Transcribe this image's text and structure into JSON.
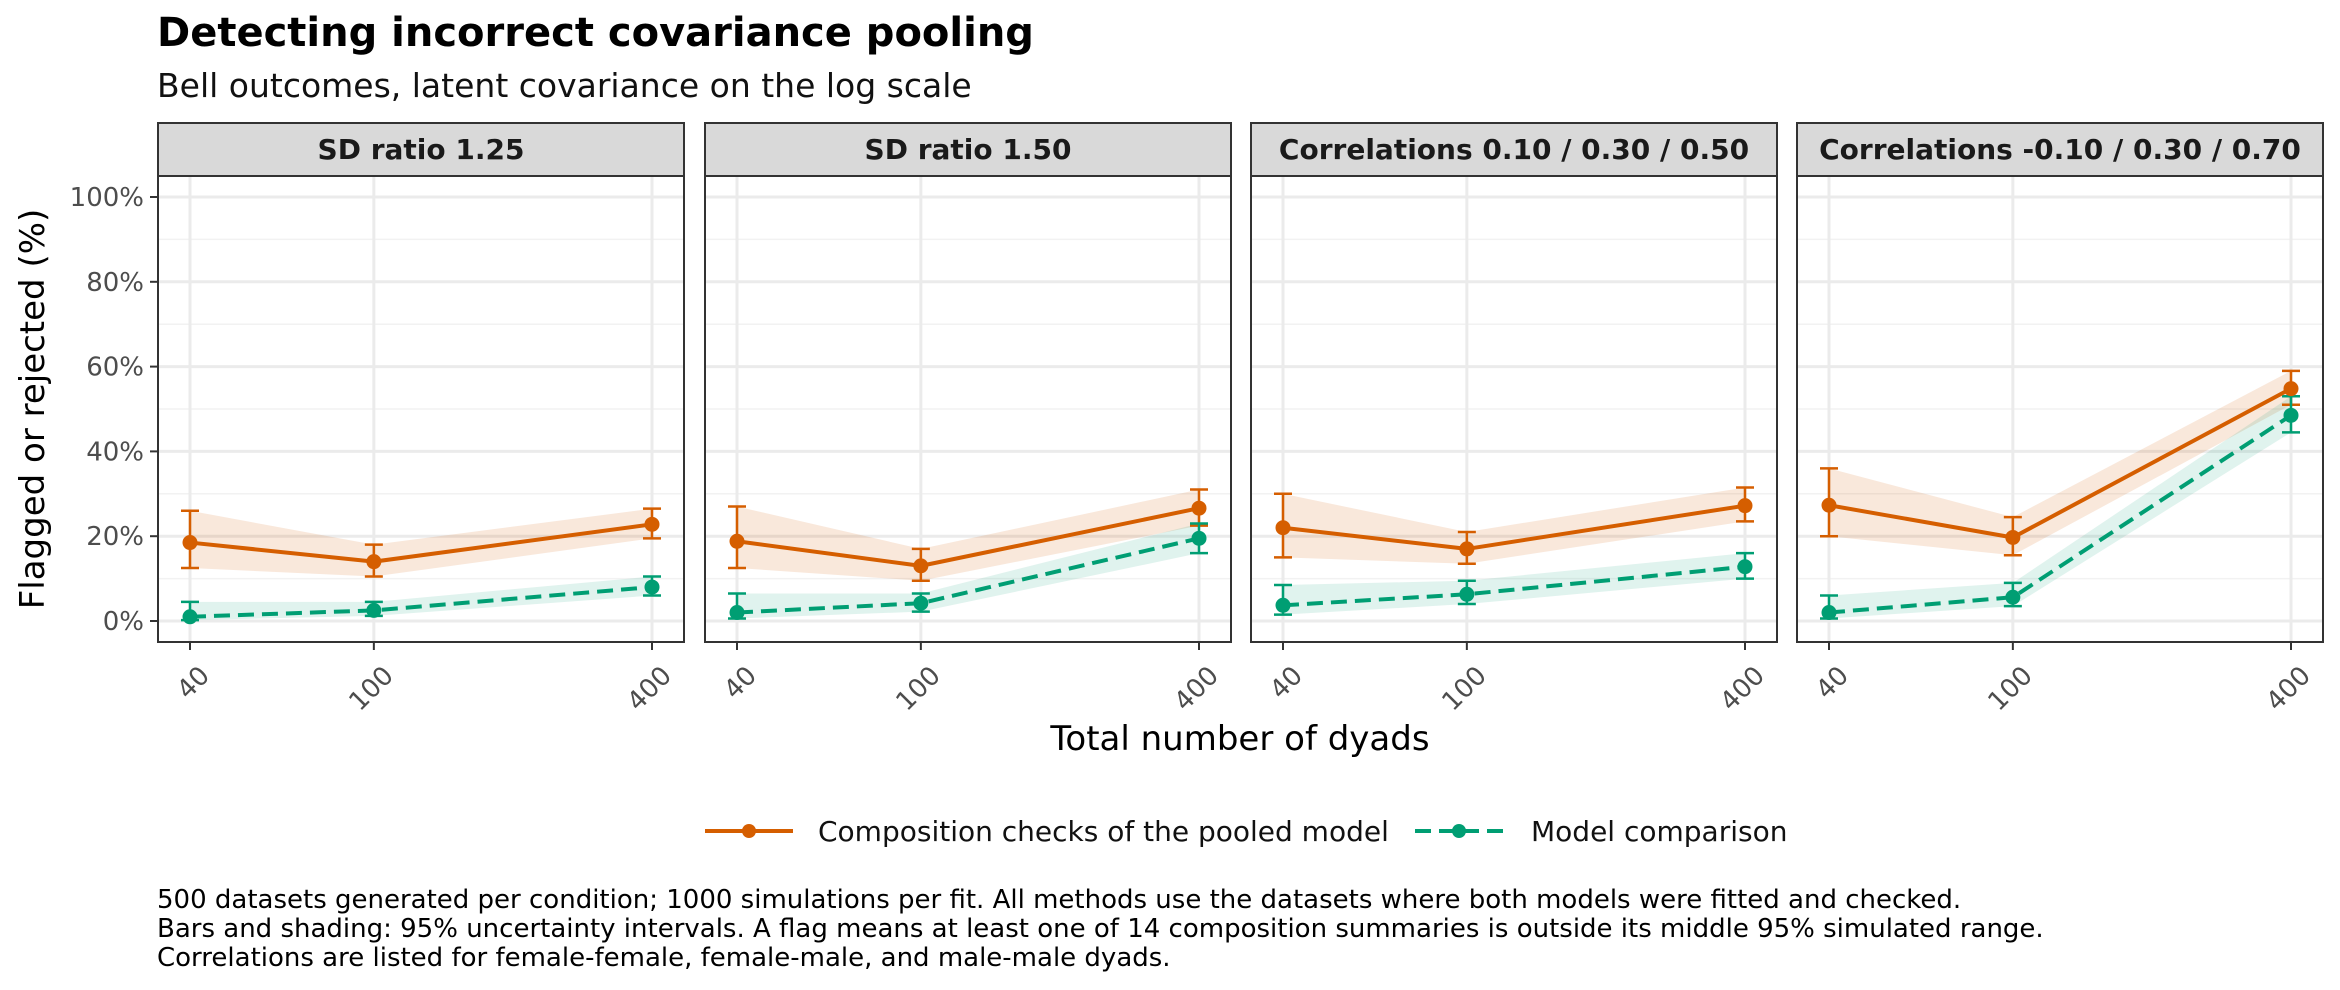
{
  "title": "Detecting incorrect covariance pooling",
  "subtitle": "Bell outcomes, latent covariance on the log scale",
  "caption": [
    "500 datasets generated per condition; 1000 simulations per fit. All methods use the datasets where both models were fitted and checked.",
    "Bars and shading: 95% uncertainty intervals. A flag means at least one of 14 composition summaries is outside its middle 95% simulated range.",
    "Correlations are listed for female-female, female-male, and male-male dyads."
  ],
  "colors": {
    "composition": "#D55E00",
    "comparison": "#009E73"
  },
  "chart_data": {
    "type": "line",
    "xlabel": "Total number of dyads",
    "ylabel": "Flagged or rejected (%)",
    "x": [
      40,
      100,
      400
    ],
    "x_tick_labels": [
      "40",
      "100",
      "400"
    ],
    "x_scale": "log",
    "ylim": [
      0,
      100
    ],
    "y_ticks": [
      0,
      20,
      40,
      60,
      80,
      100
    ],
    "y_tick_labels": [
      "0%",
      "20%",
      "40%",
      "60%",
      "80%",
      "100%"
    ],
    "grid": true,
    "legend_position": "bottom",
    "legend": [
      "Composition checks of the pooled model",
      "Model comparison"
    ],
    "panels": [
      {
        "strip": "SD ratio 1.25",
        "series": [
          {
            "name": "Composition checks of the pooled model",
            "values": [
              18.5,
              14,
              22.8
            ],
            "lower": [
              12.5,
              10.5,
              19.5
            ],
            "upper": [
              26,
              18,
              26.5
            ]
          },
          {
            "name": "Model comparison",
            "values": [
              1,
              2.5,
              8
            ],
            "lower": [
              0.2,
              1.2,
              6
            ],
            "upper": [
              4.5,
              4.5,
              10.5
            ]
          }
        ]
      },
      {
        "strip": "SD ratio 1.50",
        "series": [
          {
            "name": "Composition checks of the pooled model",
            "values": [
              18.8,
              13,
              26.6
            ],
            "lower": [
              12.5,
              9.5,
              22.5
            ],
            "upper": [
              27,
              17,
              31
            ]
          },
          {
            "name": "Model comparison",
            "values": [
              2,
              4.2,
              19.5
            ],
            "lower": [
              0.6,
              2.2,
              16
            ],
            "upper": [
              6.5,
              6.5,
              23
            ]
          }
        ]
      },
      {
        "strip": "Correlations 0.10 / 0.30 / 0.50",
        "series": [
          {
            "name": "Composition checks of the pooled model",
            "values": [
              22,
              17,
              27.2
            ],
            "lower": [
              15,
              13.5,
              23.5
            ],
            "upper": [
              30,
              21,
              31.5
            ]
          },
          {
            "name": "Model comparison",
            "values": [
              3.7,
              6.3,
              12.8
            ],
            "lower": [
              1.5,
              4,
              10
            ],
            "upper": [
              8.5,
              9.5,
              16
            ]
          }
        ]
      },
      {
        "strip": "Correlations -0.10 / 0.30 / 0.70",
        "series": [
          {
            "name": "Composition checks of the pooled model",
            "values": [
              27.3,
              19.7,
              54.8
            ],
            "lower": [
              20,
              15.5,
              51
            ],
            "upper": [
              36,
              24.5,
              59
            ]
          },
          {
            "name": "Model comparison",
            "values": [
              2,
              5.6,
              48.5
            ],
            "lower": [
              0.6,
              3.5,
              44.5
            ],
            "upper": [
              6,
              9,
              53
            ]
          }
        ]
      }
    ]
  }
}
